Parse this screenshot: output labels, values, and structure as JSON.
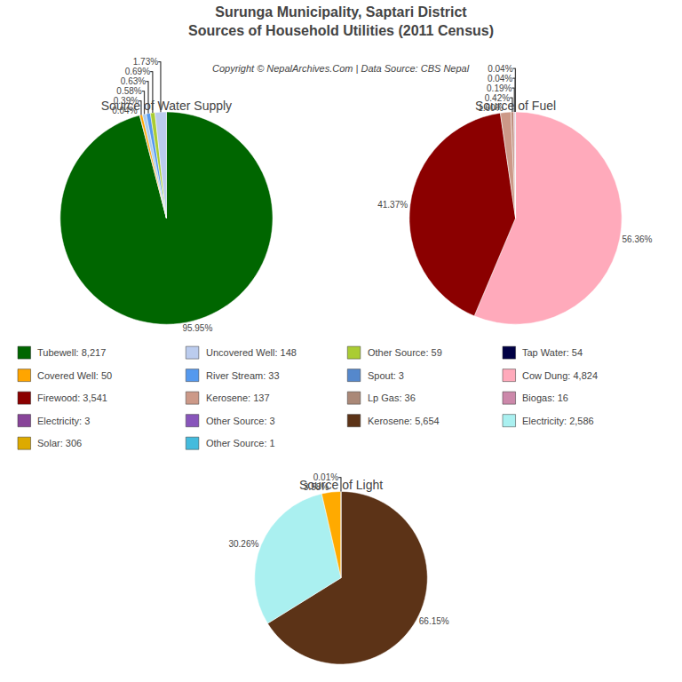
{
  "chart_data": {
    "type": "pie",
    "title": "Surunga Municipality, Saptari District",
    "subtitle": "Sources of Household Utilities (2011 Census)",
    "annotations": [
      "Copyright © NepalArchives.Com | Data Source: CBS Nepal"
    ],
    "data_labels": true,
    "pies": [
      {
        "type": "pie",
        "title": "Source of Water Supply",
        "values": [
          95.95,
          0.04,
          0.39,
          0.58,
          0.63,
          0.69,
          1.73
        ],
        "value_labels": [
          "95.95%",
          "0.04%",
          "0.39%",
          "0.58%",
          "0.63%",
          "0.69%",
          "1.73%"
        ],
        "colors": [
          "#006600",
          "#22264a",
          "#FFA500",
          "#aaccee",
          "#5599ee",
          "#aacc33",
          "#bbccee"
        ]
      },
      {
        "type": "pie",
        "title": "Source of Fuel",
        "values": [
          56.36,
          41.37,
          1.6,
          0.42,
          0.19,
          0.04,
          0.04
        ],
        "value_labels": [
          "56.36%",
          "41.37%",
          "1.60%",
          "0.42%",
          "0.19%",
          "0.04%",
          "0.04%"
        ],
        "colors": [
          "#ffaabb",
          "#8b0000",
          "#cc9988",
          "#bb8877",
          "#cc88aa",
          "#000044",
          "#aaaaaa"
        ]
      },
      {
        "type": "pie",
        "title": "Source of Light",
        "values": [
          66.15,
          30.26,
          3.58,
          0.01
        ],
        "value_labels": [
          "66.15%",
          "30.26%",
          "3.58%",
          "0.01%"
        ],
        "colors": [
          "#5c3317",
          "#aaf0f0",
          "#ffaa00",
          "#000066"
        ]
      }
    ],
    "legend_entries": [
      [
        {
          "label": "Tubewell: 8,217",
          "color": "#006600"
        },
        {
          "label": "Covered Well: 50",
          "color": "#FFA500"
        },
        {
          "label": "Firewood: 3,541",
          "color": "#8b0000"
        },
        {
          "label": "Electricity: 3",
          "color": "#884499"
        },
        {
          "label": "Solar: 306",
          "color": "#ddaa00"
        }
      ],
      [
        {
          "label": "Uncovered Well: 148",
          "color": "#bbccee"
        },
        {
          "label": "River Stream: 33",
          "color": "#5599ee"
        },
        {
          "label": "Kerosene: 137",
          "color": "#cc9988"
        },
        {
          "label": "Other Source: 3",
          "color": "#8855bb"
        },
        {
          "label": "Other Source: 1",
          "color": "#44bbdd"
        }
      ],
      [
        {
          "label": "Other Source: 59",
          "color": "#aacc33"
        },
        {
          "label": "Spout: 3",
          "color": "#5588cc"
        },
        {
          "label": "Lp Gas: 36",
          "color": "#aa8877"
        },
        {
          "label": "Kerosene: 5,654",
          "color": "#5c3317"
        }
      ],
      [
        {
          "label": "Tap Water: 54",
          "color": "#000044"
        },
        {
          "label": "Cow Dung: 4,824",
          "color": "#ffaabb"
        },
        {
          "label": "Biogas: 16",
          "color": "#cc88aa"
        },
        {
          "label": "Electricity: 2,586",
          "color": "#aaf0f0"
        }
      ]
    ]
  }
}
